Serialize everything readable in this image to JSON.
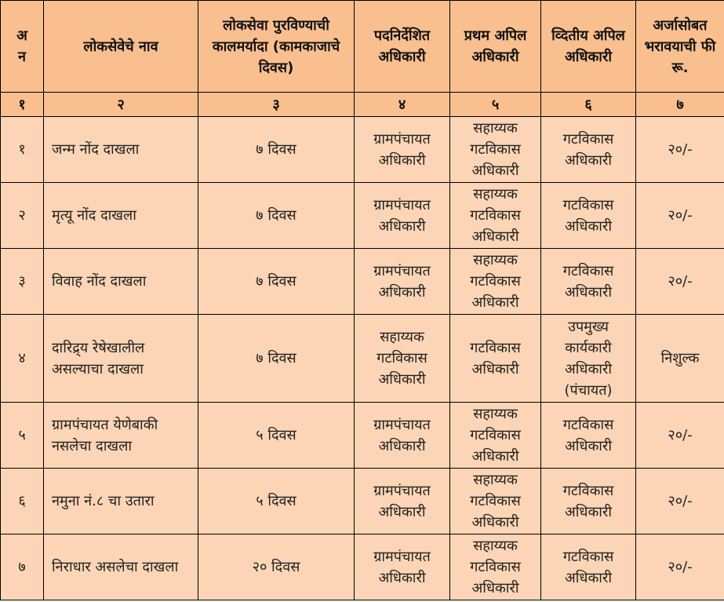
{
  "colors": {
    "header_bg": "#F9BF8F",
    "body_bg": "#FBD5B5",
    "border": "#000000"
  },
  "headers": [
    "अ न",
    "लोकसेवेचे नाव",
    "लोकसेवा पुरविण्याची कालमर्यादा (कामकाजाचे दिवस)",
    "पदनिर्देशित अधिकारी",
    "प्रथम अपिल अधिकारी",
    "व्दितीय अपिल अधिकारी",
    "अर्जासोबत भरावयाची फी रू."
  ],
  "column_numbers": [
    "१",
    "२",
    "३",
    "४",
    "५",
    "६",
    "७"
  ],
  "rows": [
    [
      "१",
      "जन्म नोंद दाखला",
      "७ दिवस",
      "ग्रामपंचायत अधिकारी",
      "सहाय्यक गटविकास अधिकारी",
      "गटविकास अधिकारी",
      "२०/-"
    ],
    [
      "२",
      "मृत्यू नोंद दाखला",
      "७ दिवस",
      "ग्रामपंचायत अधिकारी",
      "सहाय्यक गटविकास अधिकारी",
      "गटविकास अधिकारी",
      "२०/-"
    ],
    [
      "३",
      "विवाह नोंद दाखला",
      "७ दिवस",
      "ग्रामपंचायत अधिकारी",
      "सहाय्यक गटविकास अधिकारी",
      "गटविकास अधिकारी",
      "२०/-"
    ],
    [
      "४",
      "दारिद्र्य रेषेखालील असल्याचा दाखला",
      "७ दिवस",
      "सहाय्यक गटविकास अधिकारी",
      "गटविकास अधिकारी",
      "उपमुख्य कार्यकारी अधिकारी (पंचायत)",
      "निशुल्क"
    ],
    [
      "५",
      "ग्रामपंचायत येणेबाकी नसलेचा दाखला",
      "५ दिवस",
      "ग्रामपंचायत अधिकारी",
      "सहाय्यक गटविकास अधिकारी",
      "गटविकास अधिकारी",
      "२०/-"
    ],
    [
      "६",
      "नमुना नं.८ चा उतारा",
      "५ दिवस",
      "ग्रामपंचायत अधिकारी",
      "सहाय्यक गटविकास अधिकारी",
      "गटविकास अधिकारी",
      "२०/-"
    ],
    [
      "७",
      "निराधार असलेचा दाखला",
      "२० दिवस",
      "ग्रामपंचायत अधिकारी",
      "सहाय्यक गटविकास अधिकारी",
      "गटविकास अधिकारी",
      "२०/-"
    ]
  ]
}
